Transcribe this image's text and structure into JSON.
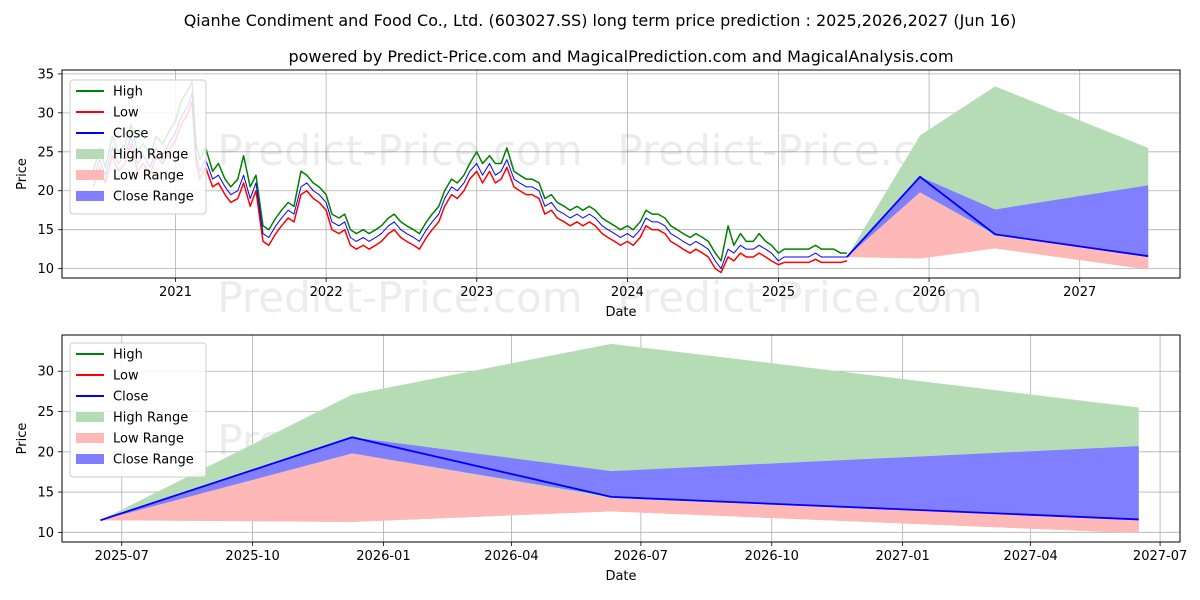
{
  "title": "Qianhe Condiment and Food Co., Ltd. (603027.SS) long term price prediction : 2025,2026,2027 (Jun 16)",
  "subtitle": "powered by Predict-Price.com and MagicalPrediction.com and MagicalAnalysis.com",
  "watermark": "Predict-Price.com",
  "colors": {
    "high": "#008000",
    "low": "#ff0000",
    "close": "#0000ff",
    "high_range": "#b6dcb6",
    "low_range": "#ffb8b8",
    "close_range": "#7f7fff",
    "grid": "#b0b0b0"
  },
  "chart_data": [
    {
      "type": "line",
      "xlabel": "Date",
      "ylabel": "Price",
      "xlim": [
        "2020-04-01",
        "2027-09-01"
      ],
      "ylim": [
        8.8,
        35.5
      ],
      "x_ticks": [
        "2021",
        "2022",
        "2023",
        "2024",
        "2025",
        "2026",
        "2027"
      ],
      "x_tick_dates": [
        "2021-01-01",
        "2022-01-01",
        "2023-01-01",
        "2024-01-01",
        "2025-01-01",
        "2026-01-01",
        "2027-01-01"
      ],
      "y_ticks": [
        10,
        15,
        20,
        25,
        30,
        35
      ],
      "grid": true,
      "legend_position": "top-left",
      "legend": [
        "High",
        "Low",
        "Close",
        "High Range",
        "Low Range",
        "Close Range"
      ],
      "history": {
        "dates": [
          "2020-06-16",
          "2020-07-01",
          "2020-07-15",
          "2020-08-01",
          "2020-08-15",
          "2020-09-01",
          "2020-09-15",
          "2020-10-01",
          "2020-10-15",
          "2020-11-01",
          "2020-11-15",
          "2020-12-01",
          "2020-12-15",
          "2021-01-01",
          "2021-01-15",
          "2021-02-01",
          "2021-02-10",
          "2021-02-20",
          "2021-03-01",
          "2021-03-15",
          "2021-04-01",
          "2021-04-15",
          "2021-05-01",
          "2021-05-15",
          "2021-06-01",
          "2021-06-15",
          "2021-07-01",
          "2021-07-15",
          "2021-08-01",
          "2021-08-15",
          "2021-09-01",
          "2021-09-15",
          "2021-10-01",
          "2021-10-15",
          "2021-11-01",
          "2021-11-15",
          "2021-12-01",
          "2021-12-15",
          "2022-01-01",
          "2022-01-15",
          "2022-02-01",
          "2022-02-15",
          "2022-03-01",
          "2022-03-15",
          "2022-04-01",
          "2022-04-15",
          "2022-05-01",
          "2022-05-15",
          "2022-06-01",
          "2022-06-15",
          "2022-07-01",
          "2022-07-15",
          "2022-08-01",
          "2022-08-15",
          "2022-09-01",
          "2022-09-15",
          "2022-10-01",
          "2022-10-15",
          "2022-11-01",
          "2022-11-15",
          "2022-12-01",
          "2022-12-15",
          "2023-01-01",
          "2023-01-15",
          "2023-02-01",
          "2023-02-15",
          "2023-03-01",
          "2023-03-15",
          "2023-04-01",
          "2023-04-15",
          "2023-05-01",
          "2023-05-15",
          "2023-06-01",
          "2023-06-15",
          "2023-07-01",
          "2023-07-15",
          "2023-08-01",
          "2023-08-15",
          "2023-09-01",
          "2023-09-15",
          "2023-10-01",
          "2023-10-15",
          "2023-11-01",
          "2023-11-15",
          "2023-12-01",
          "2023-12-15",
          "2024-01-01",
          "2024-01-15",
          "2024-02-01",
          "2024-02-15",
          "2024-03-01",
          "2024-03-15",
          "2024-04-01",
          "2024-04-15",
          "2024-05-01",
          "2024-05-15",
          "2024-06-01",
          "2024-06-15",
          "2024-07-01",
          "2024-07-15",
          "2024-08-01",
          "2024-08-15",
          "2024-09-01",
          "2024-09-15",
          "2024-10-01",
          "2024-10-15",
          "2024-11-01",
          "2024-11-15",
          "2024-12-01",
          "2024-12-15",
          "2025-01-01",
          "2025-01-15",
          "2025-02-01",
          "2025-02-15",
          "2025-03-01",
          "2025-03-15",
          "2025-04-01",
          "2025-04-15",
          "2025-05-01",
          "2025-05-15",
          "2025-06-01",
          "2025-06-16"
        ],
        "close": [
          21.5,
          24.0,
          22.0,
          25.5,
          23.5,
          24.5,
          27.0,
          23.5,
          24.5,
          23.0,
          25.5,
          24.5,
          26.0,
          27.5,
          29.5,
          31.0,
          32.5,
          24.5,
          22.5,
          24.0,
          21.5,
          22.0,
          20.5,
          19.5,
          20.0,
          22.0,
          19.0,
          21.0,
          14.5,
          14.0,
          15.5,
          16.5,
          17.5,
          17.0,
          20.5,
          21.0,
          20.0,
          19.5,
          18.5,
          16.0,
          15.5,
          16.0,
          14.0,
          13.5,
          14.0,
          13.5,
          14.0,
          14.5,
          15.5,
          16.0,
          15.0,
          14.5,
          14.0,
          13.5,
          15.0,
          16.0,
          17.0,
          19.0,
          20.5,
          20.0,
          21.0,
          22.5,
          23.5,
          22.0,
          23.5,
          22.0,
          22.5,
          24.0,
          21.5,
          21.0,
          20.5,
          20.5,
          20.0,
          18.0,
          18.5,
          17.5,
          17.0,
          16.5,
          17.0,
          16.5,
          17.0,
          16.5,
          15.5,
          15.0,
          14.5,
          14.0,
          14.5,
          14.0,
          15.0,
          16.5,
          16.0,
          16.0,
          15.5,
          14.5,
          14.0,
          13.5,
          13.0,
          13.5,
          13.0,
          12.5,
          11.0,
          10.0,
          12.5,
          12.0,
          13.0,
          12.5,
          12.5,
          13.0,
          12.5,
          12.0,
          11.0,
          11.5,
          11.5,
          11.5,
          11.5,
          11.5,
          12.0,
          11.5,
          11.5,
          11.5,
          11.5,
          11.5
        ],
        "high": [
          22.5,
          25.5,
          23.0,
          27.0,
          25.0,
          26.0,
          28.5,
          25.0,
          26.0,
          24.5,
          27.0,
          26.0,
          27.5,
          29.0,
          31.5,
          33.0,
          34.0,
          26.0,
          24.0,
          25.5,
          22.5,
          23.5,
          21.5,
          20.5,
          21.5,
          24.5,
          20.5,
          22.0,
          15.5,
          15.0,
          16.5,
          17.5,
          18.5,
          18.0,
          22.5,
          22.0,
          21.0,
          20.5,
          19.5,
          17.0,
          16.5,
          17.0,
          15.0,
          14.5,
          15.0,
          14.5,
          15.0,
          15.5,
          16.5,
          17.0,
          16.0,
          15.5,
          15.0,
          14.5,
          16.0,
          17.0,
          18.0,
          20.0,
          21.5,
          21.0,
          22.0,
          23.5,
          25.0,
          23.5,
          24.5,
          23.5,
          23.5,
          25.5,
          22.5,
          22.0,
          21.5,
          21.5,
          21.0,
          19.0,
          19.5,
          18.5,
          18.0,
          17.5,
          18.0,
          17.5,
          18.0,
          17.5,
          16.5,
          16.0,
          15.5,
          15.0,
          15.5,
          15.0,
          16.0,
          17.5,
          17.0,
          17.0,
          16.5,
          15.5,
          15.0,
          14.5,
          14.0,
          14.5,
          14.0,
          13.5,
          12.0,
          11.0,
          15.5,
          13.0,
          14.5,
          13.5,
          13.5,
          14.5,
          13.5,
          13.0,
          12.0,
          12.5,
          12.5,
          12.5,
          12.5,
          12.5,
          13.0,
          12.5,
          12.5,
          12.5,
          12.0,
          12.0
        ],
        "low": [
          20.5,
          23.0,
          21.0,
          24.5,
          22.5,
          23.5,
          26.0,
          22.5,
          23.5,
          22.0,
          24.5,
          23.5,
          25.0,
          26.5,
          28.5,
          30.0,
          31.5,
          23.5,
          21.5,
          23.0,
          20.5,
          21.0,
          19.5,
          18.5,
          19.0,
          21.0,
          18.0,
          20.0,
          13.5,
          13.0,
          14.5,
          15.5,
          16.5,
          16.0,
          19.5,
          20.0,
          19.0,
          18.5,
          17.5,
          15.0,
          14.5,
          15.0,
          13.0,
          12.5,
          13.0,
          12.5,
          13.0,
          13.5,
          14.5,
          15.0,
          14.0,
          13.5,
          13.0,
          12.5,
          14.0,
          15.0,
          16.0,
          18.0,
          19.5,
          19.0,
          20.0,
          21.5,
          22.5,
          21.0,
          22.5,
          21.0,
          21.5,
          23.0,
          20.5,
          20.0,
          19.5,
          19.5,
          19.0,
          17.0,
          17.5,
          16.5,
          16.0,
          15.5,
          16.0,
          15.5,
          16.0,
          15.5,
          14.5,
          14.0,
          13.5,
          13.0,
          13.5,
          13.0,
          14.0,
          15.5,
          15.0,
          15.0,
          14.5,
          13.5,
          13.0,
          12.5,
          12.0,
          12.5,
          12.0,
          11.5,
          10.0,
          9.5,
          11.5,
          11.0,
          12.0,
          11.5,
          11.5,
          12.0,
          11.5,
          11.0,
          10.5,
          10.8,
          10.8,
          10.8,
          10.8,
          10.8,
          11.2,
          10.8,
          10.8,
          10.8,
          10.8,
          11.0
        ]
      },
      "forecast": {
        "dates": [
          "2025-06-16",
          "2025-12-10",
          "2026-06-10",
          "2027-06-16"
        ],
        "close": [
          11.5,
          21.8,
          14.4,
          11.6
        ],
        "high_range": [
          [
            11.5,
            11.5
          ],
          [
            11.3,
            27.1
          ],
          [
            12.6,
            33.4
          ],
          [
            9.9,
            25.5
          ]
        ],
        "low_range": [
          [
            11.5,
            11.5
          ],
          [
            11.3,
            19.8
          ],
          [
            12.6,
            14.2
          ],
          [
            9.9,
            11.6
          ]
        ],
        "close_range": [
          [
            11.5,
            11.5
          ],
          [
            19.8,
            21.8
          ],
          [
            14.4,
            17.6
          ],
          [
            11.6,
            20.7
          ]
        ]
      }
    },
    {
      "type": "line",
      "xlabel": "Date",
      "ylabel": "Price",
      "xlim": [
        "2025-05-20",
        "2027-07-15"
      ],
      "ylim": [
        8.8,
        34.5
      ],
      "x_ticks": [
        "2025-07",
        "2025-10",
        "2026-01",
        "2026-04",
        "2026-07",
        "2026-10",
        "2027-01",
        "2027-04",
        "2027-07"
      ],
      "x_tick_dates": [
        "2025-07-01",
        "2025-10-01",
        "2026-01-01",
        "2026-04-01",
        "2026-07-01",
        "2026-10-01",
        "2027-01-01",
        "2027-04-01",
        "2027-07-01"
      ],
      "y_ticks": [
        10,
        15,
        20,
        25,
        30
      ],
      "grid": true,
      "legend_position": "top-left",
      "legend": [
        "High",
        "Low",
        "Close",
        "High Range",
        "Low Range",
        "Close Range"
      ],
      "forecast": {
        "dates": [
          "2025-06-16",
          "2025-12-10",
          "2026-06-10",
          "2027-06-16"
        ],
        "close": [
          11.5,
          21.8,
          14.4,
          11.6
        ],
        "high_range": [
          [
            11.5,
            11.5
          ],
          [
            11.3,
            27.1
          ],
          [
            12.6,
            33.4
          ],
          [
            9.9,
            25.5
          ]
        ],
        "low_range": [
          [
            11.5,
            11.5
          ],
          [
            11.3,
            19.8
          ],
          [
            12.6,
            14.2
          ],
          [
            9.9,
            11.6
          ]
        ],
        "close_range": [
          [
            11.5,
            11.5
          ],
          [
            19.8,
            21.8
          ],
          [
            14.4,
            17.6
          ],
          [
            11.6,
            20.7
          ]
        ]
      }
    }
  ]
}
